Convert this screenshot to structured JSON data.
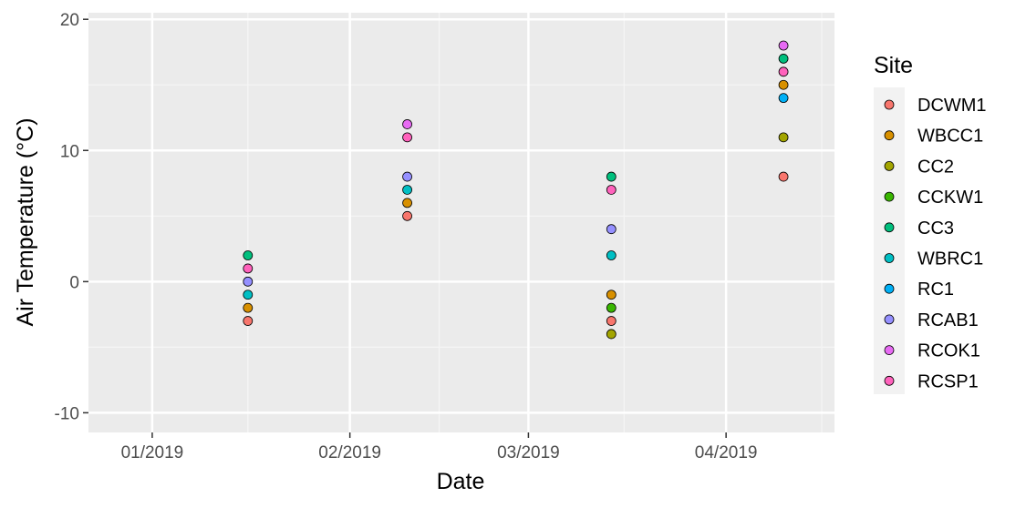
{
  "chart_data": {
    "type": "scatter",
    "xlabel": "Date",
    "ylabel": "Air Temperature (°C)",
    "x_scale": "date",
    "xlim": [
      "2018-12-22",
      "2019-04-18"
    ],
    "ylim": [
      -11.5,
      20.5
    ],
    "x_ticks": [
      {
        "value": "2019-01-01",
        "label": "01/2019"
      },
      {
        "value": "2019-02-01",
        "label": "02/2019"
      },
      {
        "value": "2019-03-01",
        "label": "03/2019"
      },
      {
        "value": "2019-04-01",
        "label": "04/2019"
      }
    ],
    "x_minor_ticks": [
      "2019-01-16",
      "2019-02-15",
      "2019-03-16",
      "2019-04-16"
    ],
    "y_ticks": [
      {
        "value": 20,
        "label": "20"
      },
      {
        "value": 10,
        "label": "10"
      },
      {
        "value": 0,
        "label": "0"
      },
      {
        "value": -10,
        "label": "-10"
      }
    ],
    "y_minor_ticks": [
      15,
      5,
      -5
    ],
    "grid": true,
    "legend": {
      "title": "Site",
      "position": "right"
    },
    "series": [
      {
        "name": "DCWM1",
        "color": "#F8766D",
        "points": [
          {
            "x": "2019-01-16",
            "y": -3
          },
          {
            "x": "2019-02-10",
            "y": 5
          },
          {
            "x": "2019-03-14",
            "y": -3
          },
          {
            "x": "2019-04-10",
            "y": 8
          }
        ]
      },
      {
        "name": "WBCC1",
        "color": "#D89000",
        "points": [
          {
            "x": "2019-01-16",
            "y": -2
          },
          {
            "x": "2019-02-10",
            "y": 6
          },
          {
            "x": "2019-03-14",
            "y": -1
          },
          {
            "x": "2019-04-10",
            "y": 15
          }
        ]
      },
      {
        "name": "CC2",
        "color": "#A3A500",
        "points": [
          {
            "x": "2019-03-14",
            "y": -4
          },
          {
            "x": "2019-04-10",
            "y": 11
          }
        ]
      },
      {
        "name": "CCKW1",
        "color": "#39B600",
        "points": [
          {
            "x": "2019-03-14",
            "y": -2
          }
        ]
      },
      {
        "name": "CC3",
        "color": "#00BF7D",
        "points": [
          {
            "x": "2019-01-16",
            "y": 2
          },
          {
            "x": "2019-03-14",
            "y": 8
          },
          {
            "x": "2019-04-10",
            "y": 17
          }
        ]
      },
      {
        "name": "WBRC1",
        "color": "#00BFC4",
        "points": [
          {
            "x": "2019-01-16",
            "y": -1
          },
          {
            "x": "2019-02-10",
            "y": 7
          },
          {
            "x": "2019-03-14",
            "y": 2
          }
        ]
      },
      {
        "name": "RC1",
        "color": "#00B0F6",
        "points": [
          {
            "x": "2019-04-10",
            "y": 14
          }
        ]
      },
      {
        "name": "RCAB1",
        "color": "#9590FF",
        "points": [
          {
            "x": "2019-01-16",
            "y": 0
          },
          {
            "x": "2019-02-10",
            "y": 8
          },
          {
            "x": "2019-03-14",
            "y": 4
          }
        ]
      },
      {
        "name": "RCOK1",
        "color": "#E76BF3",
        "points": [
          {
            "x": "2019-02-10",
            "y": 12
          },
          {
            "x": "2019-04-10",
            "y": 18
          }
        ]
      },
      {
        "name": "RCSP1",
        "color": "#FF62BC",
        "points": [
          {
            "x": "2019-01-16",
            "y": 1
          },
          {
            "x": "2019-02-10",
            "y": 11
          },
          {
            "x": "2019-03-14",
            "y": 7
          },
          {
            "x": "2019-04-10",
            "y": 16
          }
        ]
      }
    ]
  },
  "colors": {
    "panel_background": "#EBEBEB",
    "grid_major": "#FFFFFF",
    "grid_minor": "#F5F5F5",
    "tick_text": "#4D4D4D",
    "tick_mark": "#333333",
    "point_outline": "#000000"
  }
}
